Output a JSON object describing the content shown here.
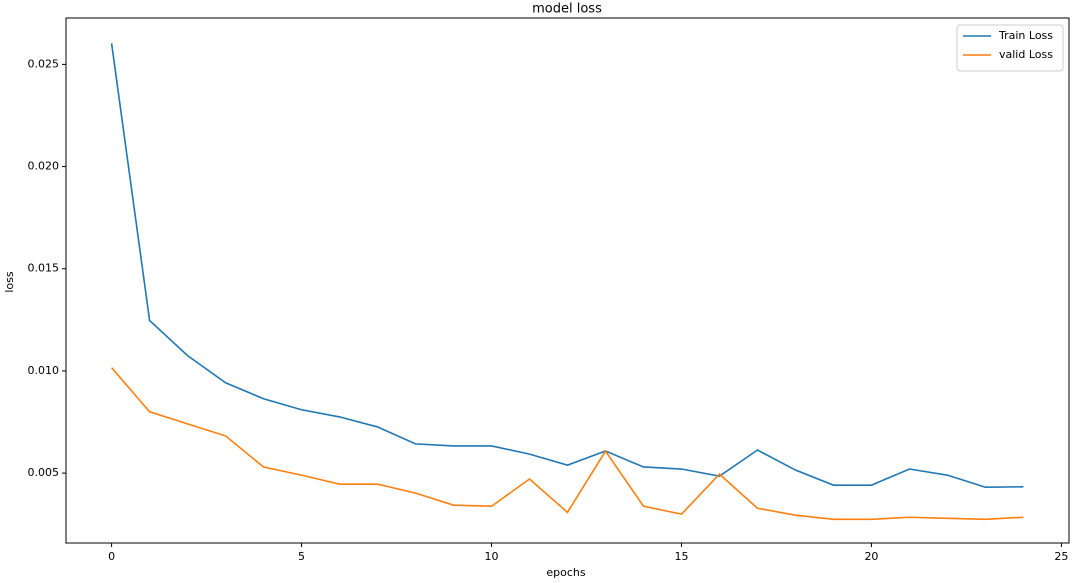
{
  "chart_data": {
    "type": "line",
    "title": "model loss",
    "x_label": "epochs",
    "y_label": "loss",
    "x": [
      0,
      1,
      2,
      3,
      4,
      5,
      6,
      7,
      8,
      9,
      10,
      11,
      12,
      13,
      14,
      15,
      16,
      17,
      18,
      19,
      20,
      21,
      22,
      23,
      24
    ],
    "series": [
      {
        "name": "Train Loss",
        "color": "#1f77b4",
        "values": [
          0.02603,
          0.01247,
          0.01075,
          0.00942,
          0.00864,
          0.0081,
          0.00775,
          0.00726,
          0.00643,
          0.00633,
          0.00633,
          0.00593,
          0.00539,
          0.00608,
          0.0053,
          0.0052,
          0.00485,
          0.00613,
          0.00515,
          0.00441,
          0.00441,
          0.0052,
          0.0049,
          0.00431,
          0.00433
        ]
      },
      {
        "name": "valid Loss",
        "color": "#ff7f0e",
        "values": [
          0.01016,
          0.008,
          0.00741,
          0.00682,
          0.0053,
          0.0049,
          0.00446,
          0.00446,
          0.00402,
          0.00343,
          0.00338,
          0.00471,
          0.00308,
          0.00608,
          0.00338,
          0.00299,
          0.00495,
          0.00328,
          0.00294,
          0.00274,
          0.00274,
          0.00284,
          0.00279,
          0.00274,
          0.00284
        ]
      }
    ],
    "xlim": [
      -1.2,
      25.2
    ],
    "xticks": [
      0,
      5,
      10,
      15,
      20,
      25
    ],
    "ylim": [
      0.00158,
      0.02727
    ],
    "yticks": [
      0.005,
      {
        "value": 0.01,
        "label": "0.010"
      },
      0.015,
      {
        "value": 0.02,
        "label": "0.020"
      },
      0.025
    ],
    "grid": false,
    "legend": "upper right"
  }
}
